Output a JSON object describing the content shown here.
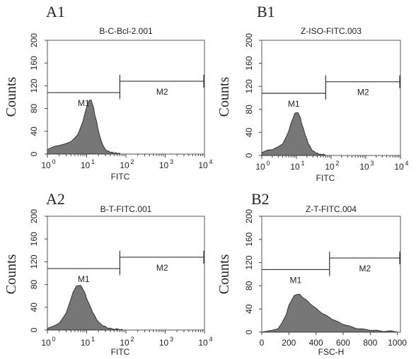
{
  "chart_data": [
    {
      "type": "area",
      "panel_label": "A1",
      "title": "B-C-Bcl-2.001",
      "xlabel": "FITC",
      "ylabel": "Counts",
      "xscale": "log",
      "xlim": [
        1,
        10000
      ],
      "ylim": [
        0,
        200
      ],
      "yticks": [
        0,
        40,
        80,
        120,
        160,
        200
      ],
      "xticks": [
        {
          "base": "10",
          "exp": "0"
        },
        {
          "base": "10",
          "exp": "1"
        },
        {
          "base": "10",
          "exp": "2"
        },
        {
          "base": "10",
          "exp": "3"
        },
        {
          "base": "10",
          "exp": "4"
        }
      ],
      "series": [
        {
          "x": [
            1,
            1.5,
            2,
            3,
            4,
            5,
            6,
            7,
            8,
            9,
            10,
            11,
            12,
            13,
            14,
            15,
            16,
            18,
            20,
            22,
            25,
            28,
            32,
            36,
            40,
            45,
            50,
            55,
            60,
            70
          ],
          "y": [
            8,
            12,
            15,
            17,
            22,
            27,
            35,
            45,
            57,
            70,
            82,
            90,
            95,
            93,
            88,
            80,
            70,
            55,
            40,
            28,
            18,
            10,
            6,
            4,
            3,
            2,
            1,
            1,
            1,
            0
          ]
        }
      ],
      "markers": [
        {
          "label": "M1",
          "x": [
            1,
            70
          ],
          "y": 108
        },
        {
          "label": "M2",
          "x": [
            70,
            10000
          ],
          "y": 128
        }
      ]
    },
    {
      "type": "area",
      "panel_label": "B1",
      "title": "Z-ISO-FITC.003",
      "xlabel": "FITC",
      "ylabel": "Counts",
      "xscale": "log",
      "xlim": [
        1,
        10000
      ],
      "ylim": [
        0,
        200
      ],
      "yticks": [
        0,
        40,
        80,
        120,
        160,
        200
      ],
      "xticks": [
        {
          "base": "10",
          "exp": "0"
        },
        {
          "base": "10",
          "exp": "1"
        },
        {
          "base": "10",
          "exp": "2"
        },
        {
          "base": "10",
          "exp": "3"
        },
        {
          "base": "10",
          "exp": "4"
        }
      ],
      "series": [
        {
          "x": [
            1,
            1.5,
            2,
            3,
            4,
            5,
            6,
            7,
            8,
            9,
            10,
            11,
            12,
            13,
            14,
            16,
            18,
            20,
            22,
            25,
            28,
            32,
            36,
            40,
            45,
            50,
            55,
            60,
            70
          ],
          "y": [
            5,
            8,
            10,
            14,
            20,
            30,
            42,
            55,
            65,
            72,
            74,
            73,
            70,
            64,
            56,
            45,
            35,
            27,
            20,
            14,
            9,
            6,
            4,
            3,
            2,
            1,
            1,
            1,
            0
          ]
        }
      ],
      "markers": [
        {
          "label": "M1",
          "x": [
            1,
            70
          ],
          "y": 108
        },
        {
          "label": "M2",
          "x": [
            70,
            10000
          ],
          "y": 128
        }
      ]
    },
    {
      "type": "area",
      "panel_label": "A2",
      "title": "B-T-FITC.001",
      "xlabel": "FITC",
      "ylabel": "Counts",
      "xscale": "log",
      "xlim": [
        1,
        10000
      ],
      "ylim": [
        0,
        200
      ],
      "yticks": [
        0,
        40,
        80,
        120,
        160,
        200
      ],
      "xticks": [
        {
          "base": "10",
          "exp": "0"
        },
        {
          "base": "10",
          "exp": "1"
        },
        {
          "base": "10",
          "exp": "2"
        },
        {
          "base": "10",
          "exp": "3"
        },
        {
          "base": "10",
          "exp": "4"
        }
      ],
      "series": [
        {
          "x": [
            1,
            1.5,
            2,
            2.5,
            3,
            3.5,
            4,
            4.5,
            5,
            5.5,
            6,
            7,
            8,
            9,
            10,
            12,
            14,
            16,
            18,
            20,
            25,
            30,
            35,
            40,
            50,
            60,
            70,
            80
          ],
          "y": [
            3,
            6,
            12,
            20,
            30,
            42,
            55,
            65,
            72,
            76,
            78,
            77,
            72,
            64,
            55,
            42,
            32,
            24,
            18,
            13,
            8,
            5,
            3,
            2,
            1,
            1,
            0,
            0
          ]
        }
      ],
      "markers": [
        {
          "label": "M1",
          "x": [
            1,
            70
          ],
          "y": 108
        },
        {
          "label": "M2",
          "x": [
            70,
            10000
          ],
          "y": 128
        }
      ]
    },
    {
      "type": "area",
      "panel_label": "B2",
      "title": "Z-T-FITC.004",
      "xlabel": "FSC-H",
      "ylabel": "Counts",
      "xscale": "linear",
      "xlim": [
        0,
        1023
      ],
      "ylim": [
        0,
        200
      ],
      "yticks": [
        0,
        40,
        80,
        120,
        160,
        200
      ],
      "xticks": [
        {
          "base": "0",
          "exp": ""
        },
        {
          "base": "200",
          "exp": ""
        },
        {
          "base": "400",
          "exp": ""
        },
        {
          "base": "600",
          "exp": ""
        },
        {
          "base": "800",
          "exp": ""
        },
        {
          "base": "1000",
          "exp": ""
        }
      ],
      "series": [
        {
          "x": [
            0,
            80,
            120,
            150,
            180,
            200,
            220,
            240,
            260,
            280,
            300,
            330,
            360,
            400,
            440,
            480,
            520,
            560,
            600,
            650,
            700,
            750,
            800,
            850,
            900,
            950,
            1000
          ],
          "y": [
            0,
            2,
            6,
            15,
            30,
            45,
            55,
            62,
            65,
            64,
            60,
            54,
            48,
            40,
            33,
            27,
            22,
            17,
            13,
            9,
            6,
            4,
            3,
            2,
            1,
            1,
            0
          ]
        }
      ],
      "markers": [
        {
          "label": "M1",
          "x": [
            0,
            500
          ],
          "y": 108
        },
        {
          "label": "M2",
          "x": [
            500,
            1023
          ],
          "y": 128
        }
      ]
    }
  ]
}
